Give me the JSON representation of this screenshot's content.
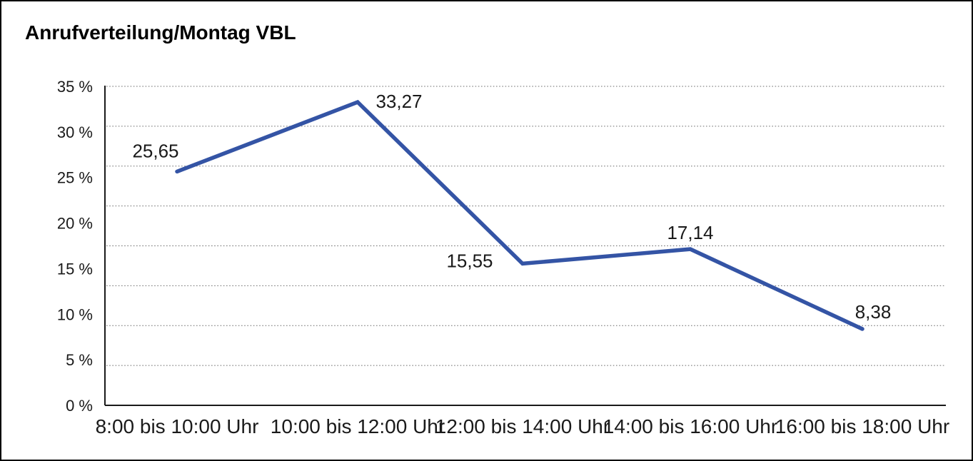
{
  "window": {
    "background": "#ffffff",
    "border_color": "#000000"
  },
  "chart_data": {
    "type": "line",
    "title": "Anrufverteilung/Montag VBL",
    "categories": [
      "8:00 bis 10:00 Uhr",
      "10:00 bis 12:00 Uhr",
      "12:00 bis 14:00 Uhr",
      "14:00 bis 16:00 Uhr",
      "16:00 bis 18:00 Uhr"
    ],
    "series": [
      {
        "name": "Anrufverteilung Montag VBL",
        "values": [
          25.65,
          33.27,
          15.55,
          17.14,
          8.38
        ],
        "value_labels": [
          "25,65",
          "33,27",
          "15,55",
          "17,14",
          "8,38"
        ]
      }
    ],
    "xlabel": "",
    "ylabel": "",
    "ylim": [
      0,
      35
    ],
    "y_tick_labels": [
      "35 %",
      "30 %",
      "25 %",
      "20 %",
      "15 %",
      "10 %",
      "5 %",
      "0 %"
    ],
    "grid": {
      "horizontal": true,
      "vertical": false,
      "style": "dotted"
    },
    "legend_position": "none",
    "colors": {
      "line": "#3454a5",
      "grid": "#6e6e6e",
      "axis": "#1a1a1a",
      "text": "#1a1a1a"
    }
  }
}
